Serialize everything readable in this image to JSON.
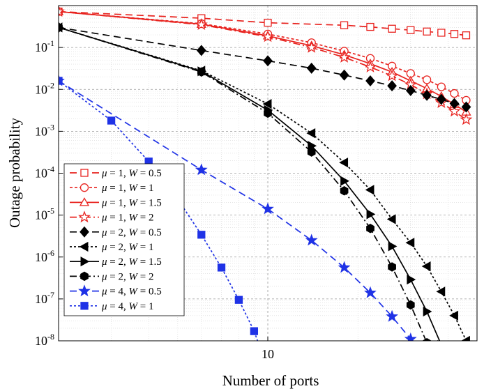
{
  "chart_data": {
    "type": "line",
    "title": "",
    "xlabel": "Number of ports",
    "ylabel": "Outage probability",
    "xscale": "log",
    "yscale": "log",
    "xlim": [
      2,
      50
    ],
    "ylim": [
      1e-08,
      1
    ],
    "x_tick_labels": [
      {
        "value": 10,
        "label": "10"
      }
    ],
    "y_tick_labels": [
      {
        "exp": -1,
        "base": "10",
        "sup": "-1"
      },
      {
        "exp": -2,
        "base": "10",
        "sup": "-2"
      },
      {
        "exp": -3,
        "base": "10",
        "sup": "-3"
      },
      {
        "exp": -4,
        "base": "10",
        "sup": "-4"
      },
      {
        "exp": -5,
        "base": "10",
        "sup": "-5"
      },
      {
        "exp": -6,
        "base": "10",
        "sup": "-6"
      },
      {
        "exp": -7,
        "base": "10",
        "sup": "-7"
      },
      {
        "exp": -8,
        "base": "10",
        "sup": "-8"
      }
    ],
    "grid": true,
    "legend_position": "left",
    "series": [
      {
        "mu": "1",
        "w": "0.5",
        "color": "#e8231f",
        "dash": "10,6",
        "marker": "square-open",
        "x": [
          2,
          6,
          10,
          18,
          22,
          26,
          30,
          34,
          38,
          42,
          46
        ],
        "y": [
          0.72,
          0.5,
          0.39,
          0.34,
          0.31,
          0.28,
          0.26,
          0.24,
          0.225,
          0.21,
          0.195
        ]
      },
      {
        "mu": "1",
        "w": "1",
        "color": "#e8231f",
        "dash": "4,3",
        "marker": "circle-open",
        "x": [
          2,
          6,
          10,
          14,
          18,
          22,
          26,
          30,
          34,
          38,
          42,
          46
        ],
        "y": [
          0.72,
          0.37,
          0.21,
          0.13,
          0.082,
          0.055,
          0.036,
          0.024,
          0.017,
          0.0115,
          0.008,
          0.0055
        ]
      },
      {
        "mu": "1",
        "w": "1.5",
        "color": "#e8231f",
        "dash": "",
        "marker": "triangle-open",
        "x": [
          2,
          6,
          10,
          14,
          18,
          22,
          26,
          30,
          34,
          38,
          42,
          46
        ],
        "y": [
          0.72,
          0.36,
          0.19,
          0.11,
          0.067,
          0.041,
          0.026,
          0.016,
          0.0105,
          0.0068,
          0.0044,
          0.0029
        ]
      },
      {
        "mu": "1",
        "w": "2",
        "color": "#e8231f",
        "dash": "10,4,2,4",
        "marker": "star-open",
        "x": [
          2,
          6,
          10,
          14,
          18,
          22,
          26,
          30,
          34,
          38,
          42,
          46
        ],
        "y": [
          0.72,
          0.35,
          0.18,
          0.1,
          0.058,
          0.034,
          0.021,
          0.013,
          0.0078,
          0.0048,
          0.003,
          0.0019
        ]
      },
      {
        "mu": "2",
        "w": "0.5",
        "color": "#000000",
        "dash": "10,6",
        "marker": "diamond",
        "x": [
          2,
          6,
          10,
          14,
          18,
          22,
          26,
          30,
          34,
          38,
          42,
          46
        ],
        "y": [
          0.3,
          0.085,
          0.048,
          0.032,
          0.022,
          0.016,
          0.0122,
          0.0094,
          0.0072,
          0.0058,
          0.0046,
          0.0038
        ]
      },
      {
        "mu": "2",
        "w": "1",
        "color": "#000000",
        "dash": "3,3",
        "marker": "triangle-left",
        "x": [
          2,
          6,
          10,
          14,
          18,
          22,
          26,
          30,
          34,
          38,
          42,
          46
        ],
        "y": [
          0.3,
          0.028,
          0.0045,
          0.0009,
          0.00018,
          4e-05,
          8e-06,
          2.2e-06,
          6e-07,
          1.5e-07,
          4e-08,
          1e-08
        ]
      },
      {
        "mu": "2",
        "w": "1.5",
        "color": "#000000",
        "dash": "",
        "marker": "triangle-right",
        "x": [
          2,
          6,
          10,
          14,
          18,
          22,
          26,
          30,
          34,
          38,
          42
        ],
        "y": [
          0.3,
          0.027,
          0.0032,
          0.00045,
          6.5e-05,
          1.05e-05,
          1.8e-06,
          2.9e-07,
          5e-08,
          8e-09,
          1.3e-09
        ]
      },
      {
        "mu": "2",
        "w": "2",
        "color": "#000000",
        "dash": "10,4,2,4",
        "marker": "hexagon",
        "x": [
          2,
          6,
          10,
          14,
          18,
          22,
          26,
          30,
          34,
          38
        ],
        "y": [
          0.3,
          0.026,
          0.0027,
          0.00032,
          3.8e-05,
          4.8e-06,
          5.8e-07,
          7.2e-08,
          9e-09,
          1.2e-09
        ]
      },
      {
        "mu": "4",
        "w": "0.5",
        "color": "#1f32e6",
        "dash": "10,6",
        "marker": "star",
        "x": [
          2,
          6,
          10,
          14,
          18,
          22,
          26,
          30,
          34
        ],
        "y": [
          0.016,
          0.00012,
          1.4e-05,
          2.5e-06,
          5.6e-07,
          1.4e-07,
          3.8e-08,
          1.1e-08,
          3e-09
        ]
      },
      {
        "mu": "4",
        "w": "1",
        "color": "#1f32e6",
        "dash": "3,3",
        "marker": "square",
        "x": [
          2,
          3,
          4,
          5,
          6,
          7,
          8,
          9,
          10
        ],
        "y": [
          0.016,
          0.0018,
          0.00019,
          2.4e-05,
          3.4e-06,
          5.6e-07,
          9.5e-08,
          1.7e-08,
          2e-09
        ]
      }
    ],
    "legend": {
      "mu_symbol": "μ",
      "w_symbol": "W",
      "entries": [
        {
          "mu": "1",
          "w": "0.5"
        },
        {
          "mu": "1",
          "w": "1"
        },
        {
          "mu": "1",
          "w": "1.5"
        },
        {
          "mu": "1",
          "w": "2"
        },
        {
          "mu": "2",
          "w": "0.5"
        },
        {
          "mu": "2",
          "w": "1"
        },
        {
          "mu": "2",
          "w": "1.5"
        },
        {
          "mu": "2",
          "w": "2"
        },
        {
          "mu": "4",
          "w": "0.5"
        },
        {
          "mu": "4",
          "w": "1"
        }
      ]
    }
  }
}
